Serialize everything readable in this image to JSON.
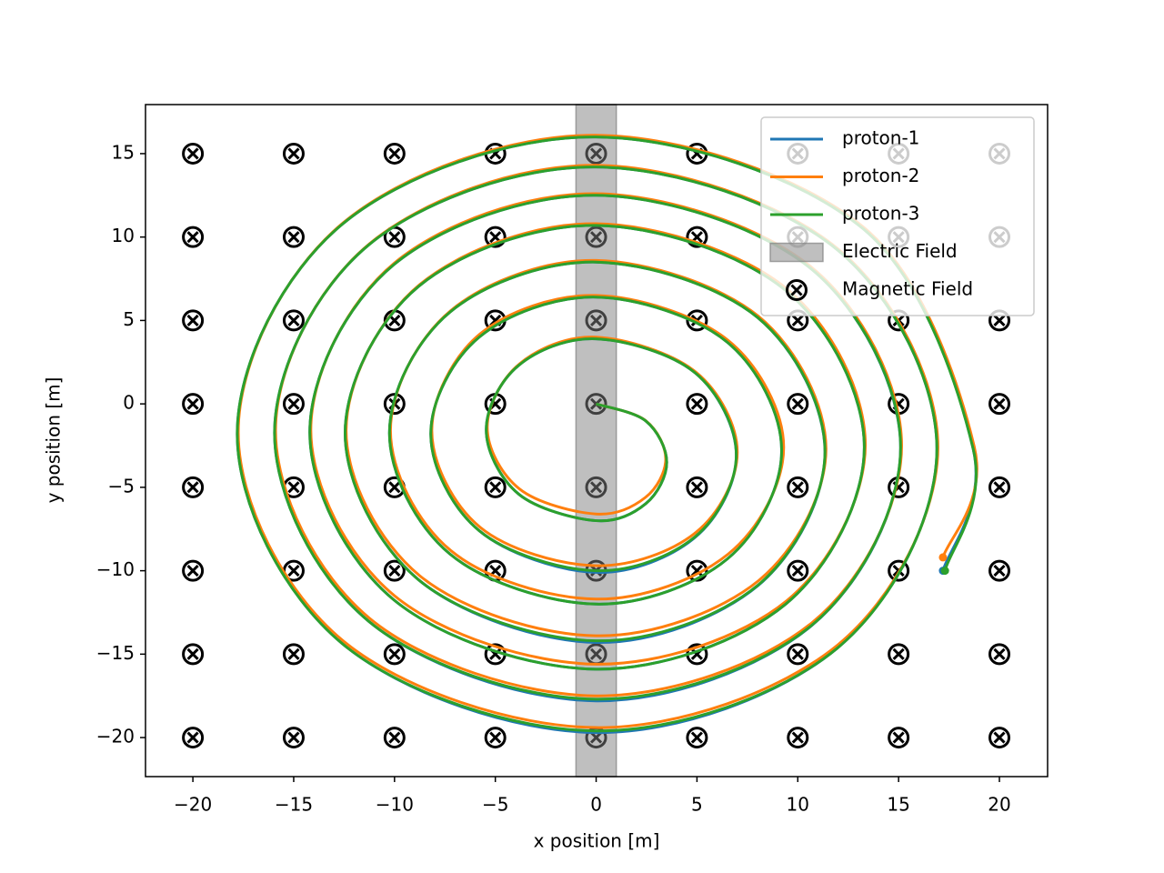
{
  "chart_data": {
    "type": "line",
    "xlabel": "x  position  [m]",
    "ylabel": "y  position [m]",
    "xlim": [
      -22.35,
      22.39
    ],
    "ylim": [
      -22.34,
      17.94
    ],
    "xticks": [
      {
        "value": -20,
        "label": "−20"
      },
      {
        "value": -15,
        "label": "−15"
      },
      {
        "value": -10,
        "label": "−10"
      },
      {
        "value": -5,
        "label": "−5"
      },
      0,
      5,
      10,
      15,
      20
    ],
    "yticks": [
      {
        "value": -20,
        "label": "−20"
      },
      {
        "value": -15,
        "label": "−15"
      },
      {
        "value": -10,
        "label": "−10"
      },
      {
        "value": -5,
        "label": "−5"
      },
      0,
      5,
      10,
      15
    ],
    "legend": "upper right",
    "series": [
      {
        "name": "proton-1",
        "color": "#1f77b4",
        "x": [
          0,
          2.47,
          3.5,
          2.47,
          0,
          -3.85,
          -5.45,
          -3.85,
          0,
          4.91,
          6.95,
          4.91,
          0,
          -5.8,
          -8.2,
          -5.8,
          0,
          6.5,
          9.2,
          6.5,
          0,
          -7.25,
          -10.25,
          -7.25,
          0,
          8.02,
          11.35,
          8.02,
          0,
          -8.8,
          -12.45,
          -8.8,
          0,
          9.4,
          13.3,
          9.4,
          0,
          -10.04,
          -14.2,
          -10.04,
          0,
          10.68,
          15.1,
          10.68,
          0,
          -11.28,
          -15.95,
          -11.28,
          0,
          11.95,
          16.9,
          11.95,
          0,
          -12.58,
          -17.8,
          -12.58,
          0,
          13.22,
          18.7,
          17.2
        ],
        "y": [
          0,
          -1.03,
          -3.5,
          -5.97,
          -7,
          -5.4,
          -1.55,
          2.3,
          3.9,
          1.86,
          -3.1,
          -8.0,
          -10.1,
          -7.6,
          -1.8,
          4.0,
          6.4,
          3.7,
          -2.8,
          -9.3,
          -12,
          -9.0,
          -1.75,
          5.5,
          8.5,
          5.17,
          -2.9,
          -10.9,
          -14.3,
          -10.55,
          -1.75,
          7.05,
          10.7,
          6.8,
          -2.6,
          -12.0,
          -15.9,
          -11.74,
          -1.7,
          8.34,
          12.5,
          8.08,
          -2.65,
          -13.3,
          -17.8,
          -13.03,
          -1.75,
          9.53,
          14.2,
          9.25,
          -2.7,
          -14.65,
          -19.7,
          -14.38,
          -1.8,
          10.78,
          16,
          10.52,
          -2.7,
          -10.0
        ]
      },
      {
        "name": "proton-2",
        "color": "#ff7f0e",
        "x": [
          0,
          2.45,
          3.45,
          2.45,
          0,
          -3.8,
          -5.4,
          -3.8,
          0,
          4.95,
          7.0,
          4.95,
          0,
          -5.75,
          -8.15,
          -5.75,
          0,
          6.55,
          9.3,
          6.55,
          0,
          -7.2,
          -10.2,
          -7.2,
          0,
          8.05,
          11.4,
          8.05,
          0,
          -8.75,
          -12.4,
          -8.75,
          0,
          9.45,
          13.35,
          9.45,
          0,
          -10.0,
          -14.15,
          -10.0,
          0,
          10.72,
          15.15,
          10.72,
          0,
          -11.24,
          -15.9,
          -11.24,
          0,
          11.98,
          16.95,
          11.98,
          0,
          -12.55,
          -17.75,
          -12.55,
          0,
          13.25,
          18.75,
          17.2
        ],
        "y": [
          0,
          -1.0,
          -3.3,
          -5.6,
          -6.6,
          -5.1,
          -1.4,
          2.4,
          4.0,
          1.9,
          -2.9,
          -7.7,
          -9.7,
          -7.4,
          -1.6,
          4.2,
          6.5,
          3.8,
          -2.6,
          -9.0,
          -11.7,
          -8.8,
          -1.6,
          5.6,
          8.6,
          5.25,
          -2.7,
          -10.6,
          -13.9,
          -10.3,
          -1.6,
          7.15,
          10.8,
          6.9,
          -2.45,
          -11.8,
          -15.6,
          -11.5,
          -1.55,
          8.45,
          12.6,
          8.15,
          -2.5,
          -13.1,
          -17.5,
          -12.85,
          -1.6,
          9.6,
          14.3,
          9.3,
          -2.6,
          -14.45,
          -19.4,
          -14.2,
          -1.7,
          10.85,
          16.1,
          10.6,
          -2.55,
          -9.2
        ]
      },
      {
        "name": "proton-3",
        "color": "#2ca02c",
        "x": [
          0,
          2.47,
          3.5,
          2.47,
          0,
          -3.85,
          -5.45,
          -3.85,
          0,
          4.91,
          6.95,
          4.91,
          0,
          -5.8,
          -8.2,
          -5.8,
          0,
          6.5,
          9.2,
          6.5,
          0,
          -7.25,
          -10.25,
          -7.25,
          0,
          8.02,
          11.35,
          8.02,
          0,
          -8.8,
          -12.45,
          -8.8,
          0,
          9.4,
          13.3,
          9.4,
          0,
          -10.04,
          -14.2,
          -10.04,
          0,
          10.68,
          15.1,
          10.68,
          0,
          -11.28,
          -15.95,
          -11.28,
          0,
          11.95,
          16.9,
          11.95,
          0,
          -12.58,
          -17.8,
          -12.58,
          0,
          13.22,
          18.7,
          17.3
        ],
        "y": [
          0,
          -1.03,
          -3.5,
          -5.97,
          -7,
          -5.4,
          -1.55,
          2.3,
          3.9,
          1.86,
          -3.05,
          -7.96,
          -10,
          -7.6,
          -1.8,
          4.0,
          6.4,
          3.7,
          -2.8,
          -9.3,
          -12,
          -9.0,
          -1.75,
          5.5,
          8.5,
          5.17,
          -2.85,
          -10.87,
          -14.2,
          -10.55,
          -1.75,
          7.05,
          10.7,
          6.8,
          -2.6,
          -12.0,
          -15.9,
          -11.74,
          -1.7,
          8.34,
          12.5,
          8.08,
          -2.6,
          -13.28,
          -17.7,
          -13.03,
          -1.75,
          9.53,
          14.2,
          9.25,
          -2.7,
          -14.65,
          -19.6,
          -14.38,
          -1.8,
          10.78,
          16,
          10.52,
          -2.7,
          -10.0
        ]
      }
    ],
    "electric_field": {
      "name": "Electric Field",
      "color": "#808080",
      "xspan": [
        -1,
        1
      ]
    },
    "magnetic_field": {
      "name": "Magnetic Field",
      "color": "#000000",
      "x_grid": [
        -20,
        -15,
        -10,
        -5,
        0,
        5,
        10,
        15,
        20
      ],
      "y_grid": [
        -20,
        -15,
        -10,
        -5,
        0,
        5,
        10,
        15
      ]
    }
  }
}
